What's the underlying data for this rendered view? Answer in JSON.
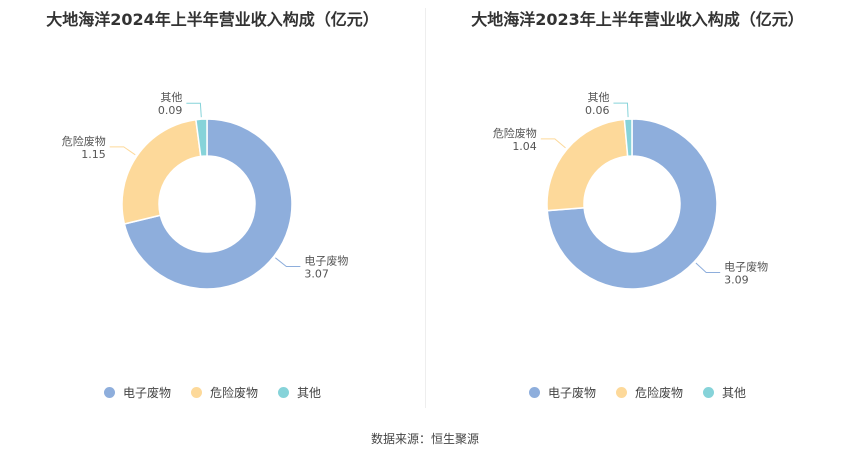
{
  "chart_data": [
    {
      "type": "pie",
      "title": "大地海洋2024年上半年营业收入构成（亿元）",
      "categories": [
        "电子废物",
        "危险废物",
        "其他"
      ],
      "values": [
        3.07,
        1.15,
        0.09
      ],
      "value_labels": [
        "3.07",
        "1.15",
        "0.09"
      ],
      "colors": [
        "#8eaedc",
        "#fdd99a",
        "#86d3d9"
      ],
      "legend_position": "bottom"
    },
    {
      "type": "pie",
      "title": "大地海洋2023年上半年营业收入构成（亿元）",
      "categories": [
        "电子废物",
        "危险废物",
        "其他"
      ],
      "values": [
        3.09,
        1.04,
        0.06
      ],
      "value_labels": [
        "3.09",
        "1.04",
        "0.06"
      ],
      "colors": [
        "#8eaedc",
        "#fdd99a",
        "#86d3d9"
      ],
      "legend_position": "bottom"
    }
  ],
  "source": "数据来源：恒生聚源"
}
